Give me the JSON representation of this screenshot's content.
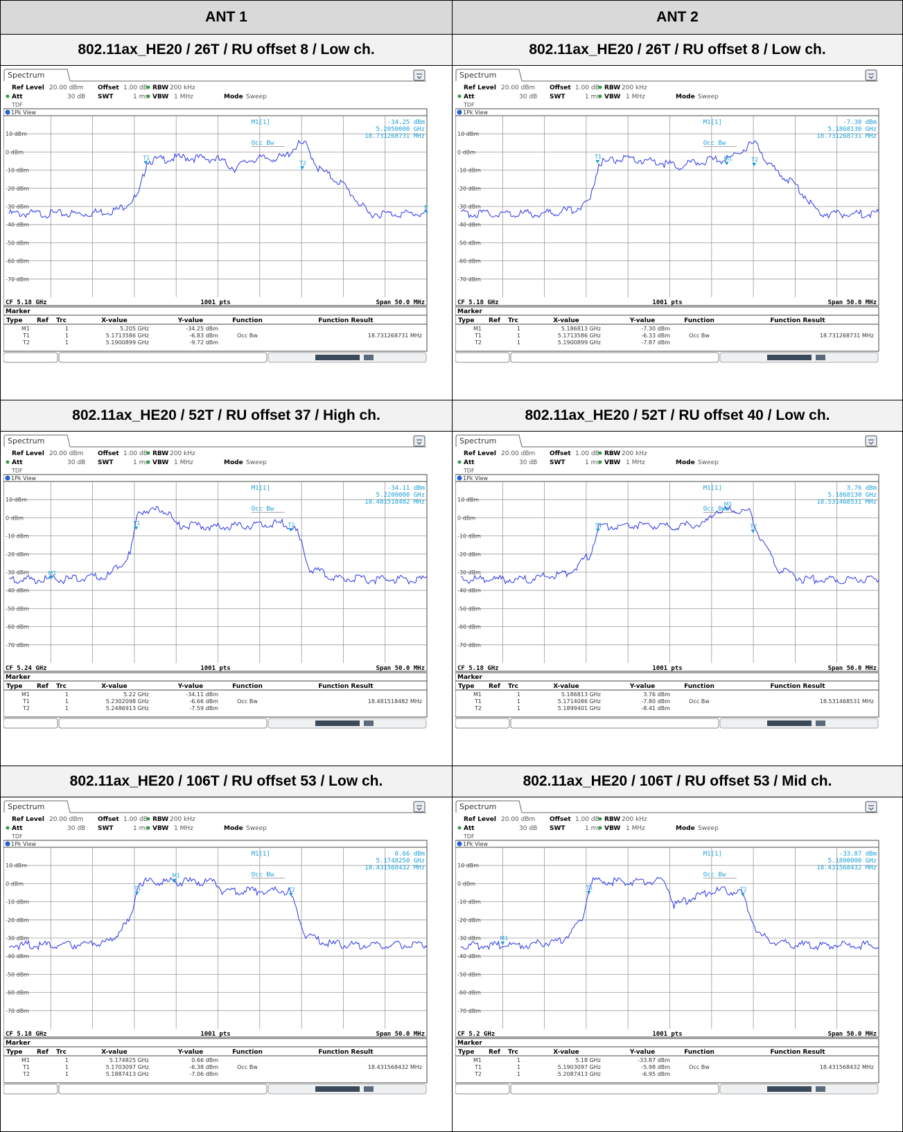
{
  "headers": [
    "ANT 1",
    "ANT 2"
  ],
  "common": {
    "tab_label": "Spectrum",
    "ref_level_label": "Ref Level",
    "ref_level_value": "20.00 dBm",
    "offset_label": "Offset",
    "offset_value": "1.00 dB",
    "rbw_label": "RBW",
    "rbw_value": "200 kHz",
    "att_label": "Att",
    "att_value": "30 dB",
    "swt_label": "SWT",
    "swt_value": "1 ms",
    "vbw_label": "VBW",
    "vbw_value": "1 MHz",
    "mode_label": "Mode",
    "mode_value": "Sweep",
    "tdf_label": "TDF",
    "view_label": "1Pk View",
    "marker_label": "M1[1]",
    "occbw_label": "Occ Bw",
    "pts_label": "1001 pts",
    "span_label": "Span 50.0 MHz",
    "marker_section_label": "Marker",
    "y_tick_labels": [
      "10 dBm",
      "0 dBm",
      "-10 dBm",
      "-20 dBm",
      "-30 dBm",
      "-40 dBm",
      "-50 dBm",
      "-60 dBm",
      "-70 dBm"
    ],
    "table_headers": [
      "Type",
      "Ref",
      "Trc",
      "X-value",
      "Y-value",
      "Function",
      "Function Result"
    ],
    "trace_color": "#2b35e6",
    "marker_color": "#1a9fd6"
  },
  "panels": [
    {
      "title": "802.11ax_HE20 / 26T / RU offset 8 / Low ch.",
      "m1_value": "-34.25 dBm",
      "m1_freq": "5.2050000 GHz",
      "occbw_value": "18.731268731 MHz",
      "cf_label": "CF 5.18 GHz",
      "rows": [
        {
          "type": "M1",
          "ref": "",
          "trc": "1",
          "x": "5.205 GHz",
          "y": "-34.25 dBm",
          "func": "",
          "result": ""
        },
        {
          "type": "T1",
          "ref": "",
          "trc": "1",
          "x": "5.1713586 GHz",
          "y": "-6.83 dBm",
          "func": "Occ Bw",
          "result": "18.731268731 MHz"
        },
        {
          "type": "T2",
          "ref": "",
          "trc": "1",
          "x": "5.1900899 GHz",
          "y": "-9.72 dBm",
          "func": "",
          "result": ""
        }
      ],
      "marker_labels": [
        "T1",
        "T2",
        "M1"
      ],
      "chart_data": {
        "type": "line",
        "xlabel": "",
        "ylabel": "",
        "xlim": [
          5.155,
          5.205
        ],
        "ylim": [
          -80,
          20
        ],
        "x": [
          5.155,
          5.164,
          5.168,
          5.1705,
          5.1715,
          5.1735,
          5.176,
          5.18,
          5.182,
          5.184,
          5.188,
          5.1895,
          5.1905,
          5.192,
          5.195,
          5.198,
          5.205
        ],
        "y": [
          -34,
          -34,
          -32,
          -24,
          -5,
          -4,
          -3,
          -4,
          -9,
          -4,
          -3,
          4,
          4,
          -9,
          -18,
          -34,
          -34
        ]
      }
    },
    {
      "title": "802.11ax_HE20 / 26T / RU offset 8 / Low ch.",
      "m1_value": "-7.30 dBm",
      "m1_freq": "5.1868130 GHz",
      "occbw_value": "18.731268731 MHz",
      "cf_label": "CF 5.18 GHz",
      "rows": [
        {
          "type": "M1",
          "ref": "",
          "trc": "1",
          "x": "5.186813 GHz",
          "y": "-7.30 dBm",
          "func": "",
          "result": ""
        },
        {
          "type": "T1",
          "ref": "",
          "trc": "1",
          "x": "5.1713586 GHz",
          "y": "-6.33 dBm",
          "func": "Occ Bw",
          "result": "18.731268731 MHz"
        },
        {
          "type": "T2",
          "ref": "",
          "trc": "1",
          "x": "5.1900899 GHz",
          "y": "-7.87 dBm",
          "func": "",
          "result": ""
        }
      ],
      "marker_labels": [
        "T1",
        "M1",
        "T2"
      ],
      "chart_data": {
        "type": "line",
        "xlabel": "",
        "ylabel": "",
        "xlim": [
          5.155,
          5.205
        ],
        "ylim": [
          -80,
          20
        ],
        "x": [
          5.155,
          5.164,
          5.1685,
          5.1705,
          5.1715,
          5.174,
          5.178,
          5.181,
          5.184,
          5.187,
          5.1895,
          5.1905,
          5.192,
          5.195,
          5.198,
          5.205
        ],
        "y": [
          -34,
          -34,
          -32,
          -26,
          -6,
          -4,
          -5,
          -8,
          -5,
          -4,
          4,
          4,
          -8,
          -18,
          -34,
          -34
        ]
      }
    },
    {
      "title": "802.11ax_HE20 / 52T / RU offset 37 / High ch.",
      "m1_value": "-34.11 dBm",
      "m1_freq": "5.2200000 GHz",
      "occbw_value": "18.481518482 MHz",
      "cf_label": "CF 5.24 GHz",
      "rows": [
        {
          "type": "M1",
          "ref": "",
          "trc": "1",
          "x": "5.22 GHz",
          "y": "-34.11 dBm",
          "func": "",
          "result": ""
        },
        {
          "type": "T1",
          "ref": "",
          "trc": "1",
          "x": "5.2302098 GHz",
          "y": "-6.66 dBm",
          "func": "Occ Bw",
          "result": "18.481518482 MHz"
        },
        {
          "type": "T2",
          "ref": "",
          "trc": "1",
          "x": "5.2486913 GHz",
          "y": "-7.59 dBm",
          "func": "",
          "result": ""
        }
      ],
      "marker_labels": [
        "M1",
        "T1",
        "T2"
      ],
      "chart_data": {
        "type": "line",
        "xlabel": "",
        "ylabel": "",
        "xlim": [
          5.215,
          5.265
        ],
        "ylim": [
          -80,
          20
        ],
        "x": [
          5.215,
          5.222,
          5.227,
          5.2295,
          5.2305,
          5.234,
          5.235,
          5.24,
          5.2445,
          5.248,
          5.2495,
          5.251,
          5.254,
          5.257,
          5.265
        ],
        "y": [
          -34,
          -34,
          -32,
          -20,
          4,
          4,
          -4,
          -5,
          -4,
          -3,
          -8,
          -28,
          -33,
          -34,
          -34
        ]
      }
    },
    {
      "title": "802.11ax_HE20 / 52T / RU offset 40 / Low ch.",
      "m1_value": "3.76 dBm",
      "m1_freq": "5.1868130 GHz",
      "occbw_value": "18.531468531 MHz",
      "cf_label": "CF 5.18 GHz",
      "rows": [
        {
          "type": "M1",
          "ref": "",
          "trc": "1",
          "x": "5.186813 GHz",
          "y": "3.76 dBm",
          "func": "",
          "result": ""
        },
        {
          "type": "T1",
          "ref": "",
          "trc": "1",
          "x": "5.1714086 GHz",
          "y": "-7.80 dBm",
          "func": "Occ Bw",
          "result": "18.531468531 MHz"
        },
        {
          "type": "T2",
          "ref": "",
          "trc": "1",
          "x": "5.1899401 GHz",
          "y": "-8.41 dBm",
          "func": "",
          "result": ""
        }
      ],
      "marker_labels": [
        "T1",
        "M1",
        "T2"
      ],
      "chart_data": {
        "type": "line",
        "xlabel": "",
        "ylabel": "",
        "xlim": [
          5.155,
          5.205
        ],
        "ylim": [
          -80,
          20
        ],
        "x": [
          5.155,
          5.163,
          5.168,
          5.1705,
          5.1715,
          5.175,
          5.18,
          5.1845,
          5.1855,
          5.1895,
          5.1905,
          5.193,
          5.196,
          5.205
        ],
        "y": [
          -34,
          -34,
          -30,
          -20,
          -5,
          -4,
          -5,
          -3,
          4,
          4,
          -8,
          -28,
          -34,
          -34
        ]
      }
    },
    {
      "title": "802.11ax_HE20 / 106T / RU offset 53 / Low ch.",
      "m1_value": "0.66 dBm",
      "m1_freq": "5.1748250 GHz",
      "occbw_value": "18.431568432 MHz",
      "cf_label": "CF 5.18 GHz",
      "rows": [
        {
          "type": "M1",
          "ref": "",
          "trc": "1",
          "x": "5.174825 GHz",
          "y": "0.66 dBm",
          "func": "",
          "result": ""
        },
        {
          "type": "T1",
          "ref": "",
          "trc": "1",
          "x": "5.1703097 GHz",
          "y": "-6.38 dBm",
          "func": "Occ Bw",
          "result": "18.431568432 MHz"
        },
        {
          "type": "T2",
          "ref": "",
          "trc": "1",
          "x": "5.1887413 GHz",
          "y": "-7.06 dBm",
          "func": "",
          "result": ""
        }
      ],
      "marker_labels": [
        "M1",
        "T1",
        "T2"
      ],
      "chart_data": {
        "type": "line",
        "xlabel": "",
        "ylabel": "",
        "xlim": [
          5.155,
          5.205
        ],
        "ylim": [
          -80,
          20
        ],
        "x": [
          5.155,
          5.162,
          5.167,
          5.1695,
          5.1705,
          5.174,
          5.1795,
          5.1805,
          5.185,
          5.1885,
          5.1905,
          5.193,
          5.196,
          5.205
        ],
        "y": [
          -34,
          -34,
          -32,
          -20,
          1,
          1,
          1,
          -4,
          -4,
          -4,
          -28,
          -33,
          -34,
          -34
        ]
      }
    },
    {
      "title": "802.11ax_HE20 / 106T / RU offset 53 / Mid ch.",
      "m1_value": "-33.87 dBm",
      "m1_freq": "5.1800000 GHz",
      "occbw_value": "18.431568432 MHz",
      "cf_label": "CF 5.2 GHz",
      "rows": [
        {
          "type": "M1",
          "ref": "",
          "trc": "1",
          "x": "5.18 GHz",
          "y": "-33.87 dBm",
          "func": "",
          "result": ""
        },
        {
          "type": "T1",
          "ref": "",
          "trc": "1",
          "x": "5.1903097 GHz",
          "y": "-5.98 dBm",
          "func": "Occ Bw",
          "result": "18.431568432 MHz"
        },
        {
          "type": "T2",
          "ref": "",
          "trc": "1",
          "x": "5.2087413 GHz",
          "y": "-6.95 dBm",
          "func": "",
          "result": ""
        }
      ],
      "marker_labels": [
        "M1",
        "T1",
        "T2"
      ],
      "chart_data": {
        "type": "line",
        "xlabel": "",
        "ylabel": "",
        "xlim": [
          5.175,
          5.225
        ],
        "ylim": [
          -80,
          20
        ],
        "x": [
          5.175,
          5.182,
          5.187,
          5.1895,
          5.1905,
          5.194,
          5.1995,
          5.2005,
          5.205,
          5.2085,
          5.2105,
          5.213,
          5.216,
          5.225
        ],
        "y": [
          -34,
          -34,
          -32,
          -20,
          1,
          1,
          1,
          -12,
          -4,
          -4,
          -28,
          -33,
          -34,
          -34
        ]
      }
    }
  ]
}
